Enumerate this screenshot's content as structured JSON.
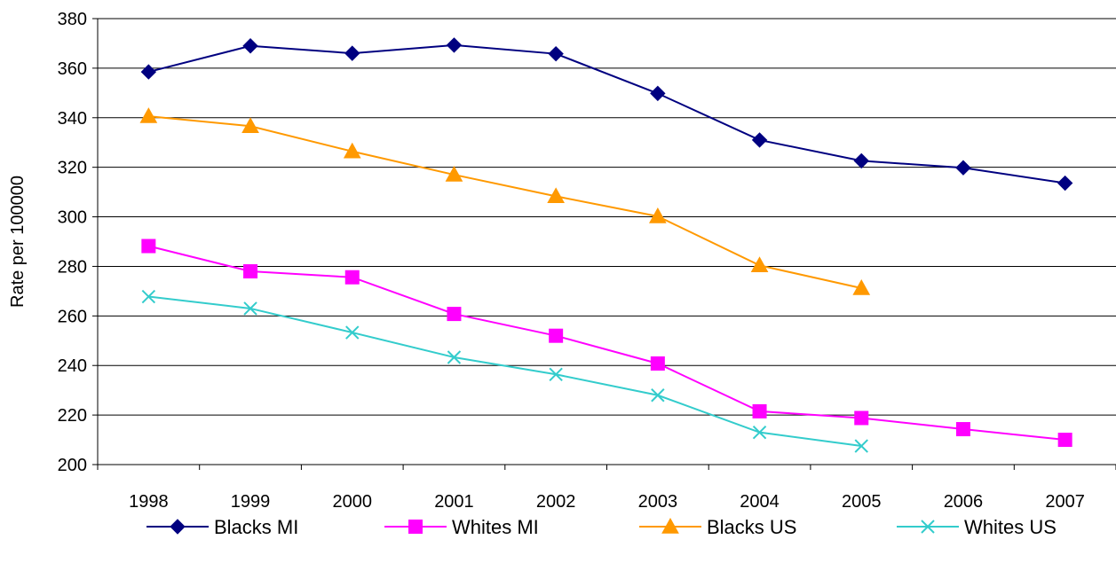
{
  "chart_data": {
    "type": "line",
    "title": "",
    "xlabel": "",
    "ylabel": "Rate per 100000",
    "ylim": [
      200,
      380
    ],
    "yticks": [
      200,
      220,
      240,
      260,
      280,
      300,
      320,
      340,
      360,
      380
    ],
    "grid": "horizontal",
    "legend": "bottom",
    "categories": [
      "1998",
      "1999",
      "2000",
      "2001",
      "2002",
      "2003",
      "2004",
      "2005",
      "2006",
      "2007"
    ],
    "series": [
      {
        "name": "Blacks MI",
        "color": "#000080",
        "marker": "diamond",
        "values": [
          358.5,
          369,
          366,
          369.3,
          365.8,
          349.8,
          331,
          322.6,
          319.8,
          313.6
        ]
      },
      {
        "name": "Whites MI",
        "color": "#FF00FF",
        "marker": "square",
        "values": [
          288.2,
          278,
          275.6,
          260.8,
          252,
          240.8,
          221.5,
          218.8,
          214.3,
          210
        ]
      },
      {
        "name": "Blacks US",
        "color": "#FF9900",
        "marker": "triangle",
        "values": [
          340.6,
          336.6,
          326.4,
          317,
          308.3,
          300.2,
          280.4,
          271.2,
          null,
          null
        ]
      },
      {
        "name": "Whites US",
        "color": "#33CCCC",
        "marker": "x",
        "values": [
          267.8,
          263,
          253.3,
          243.3,
          236.4,
          228,
          213,
          207.5,
          null,
          null
        ]
      }
    ]
  }
}
